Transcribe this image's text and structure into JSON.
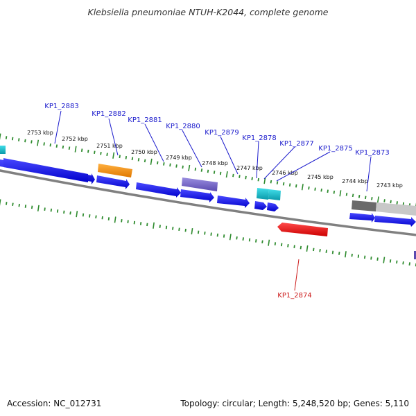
{
  "title": "Klebsiella pneumoniae NTUH-K2044, complete genome",
  "accession": "Accession: NC_012731",
  "topology": "Topology: circular; Length: 5,248,520 bp; Genes: 5,110",
  "colors": {
    "cds": "#1a1aee",
    "rrna_orange": "#f08c00",
    "rna_purple": "#7b6cc8",
    "trna_cyan": "#1ab8c8",
    "gray_dark": "#6a6a6a",
    "gray_light": "#c8c8c8",
    "highlight": "#ee1a1a",
    "tick": "#2e8b2e",
    "backbone": "#808080",
    "label_blue": "#1a1acc",
    "label_red": "#cc1a1a"
  },
  "tick_labels": [
    "2753 kbp",
    "2752 kbp",
    "2751 kbp",
    "2750 kbp",
    "2749 kbp",
    "2748 kbp",
    "2747 kbp",
    "2746 kbp",
    "2745 kbp",
    "2744 kbp",
    "2743 kbp"
  ],
  "gene_labels": [
    {
      "text": "KP1_2883",
      "strand": "forward"
    },
    {
      "text": "KP1_2882",
      "strand": "forward"
    },
    {
      "text": "KP1_2881",
      "strand": "forward"
    },
    {
      "text": "KP1_2880",
      "strand": "forward"
    },
    {
      "text": "KP1_2879",
      "strand": "forward"
    },
    {
      "text": "KP1_2878",
      "strand": "forward"
    },
    {
      "text": "KP1_2877",
      "strand": "forward"
    },
    {
      "text": "KP1_2875",
      "strand": "forward"
    },
    {
      "text": "KP1_2873",
      "strand": "forward"
    },
    {
      "text": "KP1_2874",
      "strand": "reverse"
    }
  ]
}
